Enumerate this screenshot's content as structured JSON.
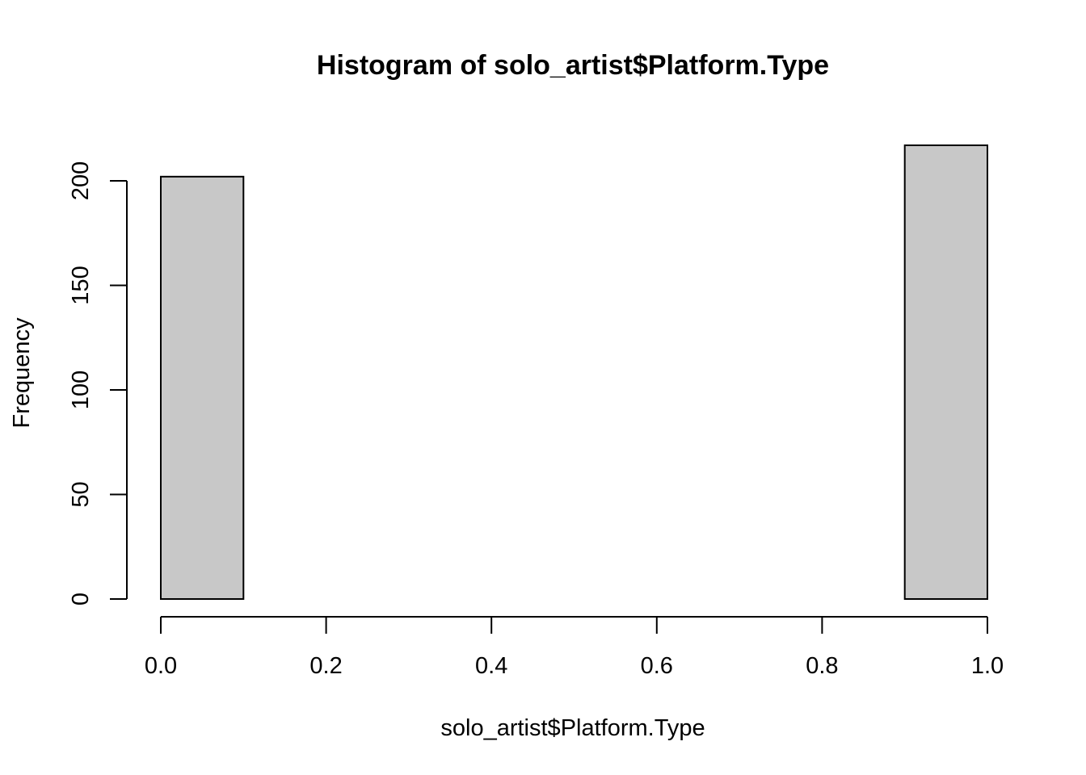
{
  "chart_data": {
    "type": "bar",
    "title": "Histogram of solo_artist$Platform.Type",
    "xlabel": "solo_artist$Platform.Type",
    "ylabel": "Frequency",
    "bins": [
      {
        "start": 0.0,
        "end": 0.1,
        "count": 202
      },
      {
        "start": 0.1,
        "end": 0.2,
        "count": 0
      },
      {
        "start": 0.2,
        "end": 0.3,
        "count": 0
      },
      {
        "start": 0.3,
        "end": 0.4,
        "count": 0
      },
      {
        "start": 0.4,
        "end": 0.5,
        "count": 0
      },
      {
        "start": 0.5,
        "end": 0.6,
        "count": 0
      },
      {
        "start": 0.6,
        "end": 0.7,
        "count": 0
      },
      {
        "start": 0.7,
        "end": 0.8,
        "count": 0
      },
      {
        "start": 0.8,
        "end": 0.9,
        "count": 0
      },
      {
        "start": 0.9,
        "end": 1.0,
        "count": 217
      }
    ],
    "xlim": [
      0.0,
      1.0
    ],
    "ylim": [
      0,
      220
    ],
    "x_ticks": [
      0.0,
      0.2,
      0.4,
      0.6,
      0.8,
      1.0
    ],
    "x_tick_labels": [
      "0.0",
      "0.2",
      "0.4",
      "0.6",
      "0.8",
      "1.0"
    ],
    "y_ticks": [
      0,
      50,
      100,
      150,
      200
    ],
    "y_tick_labels": [
      "0",
      "50",
      "100",
      "150",
      "200"
    ],
    "grid": false,
    "bar_color": "#c8c8c8",
    "border_color": "#000000"
  }
}
